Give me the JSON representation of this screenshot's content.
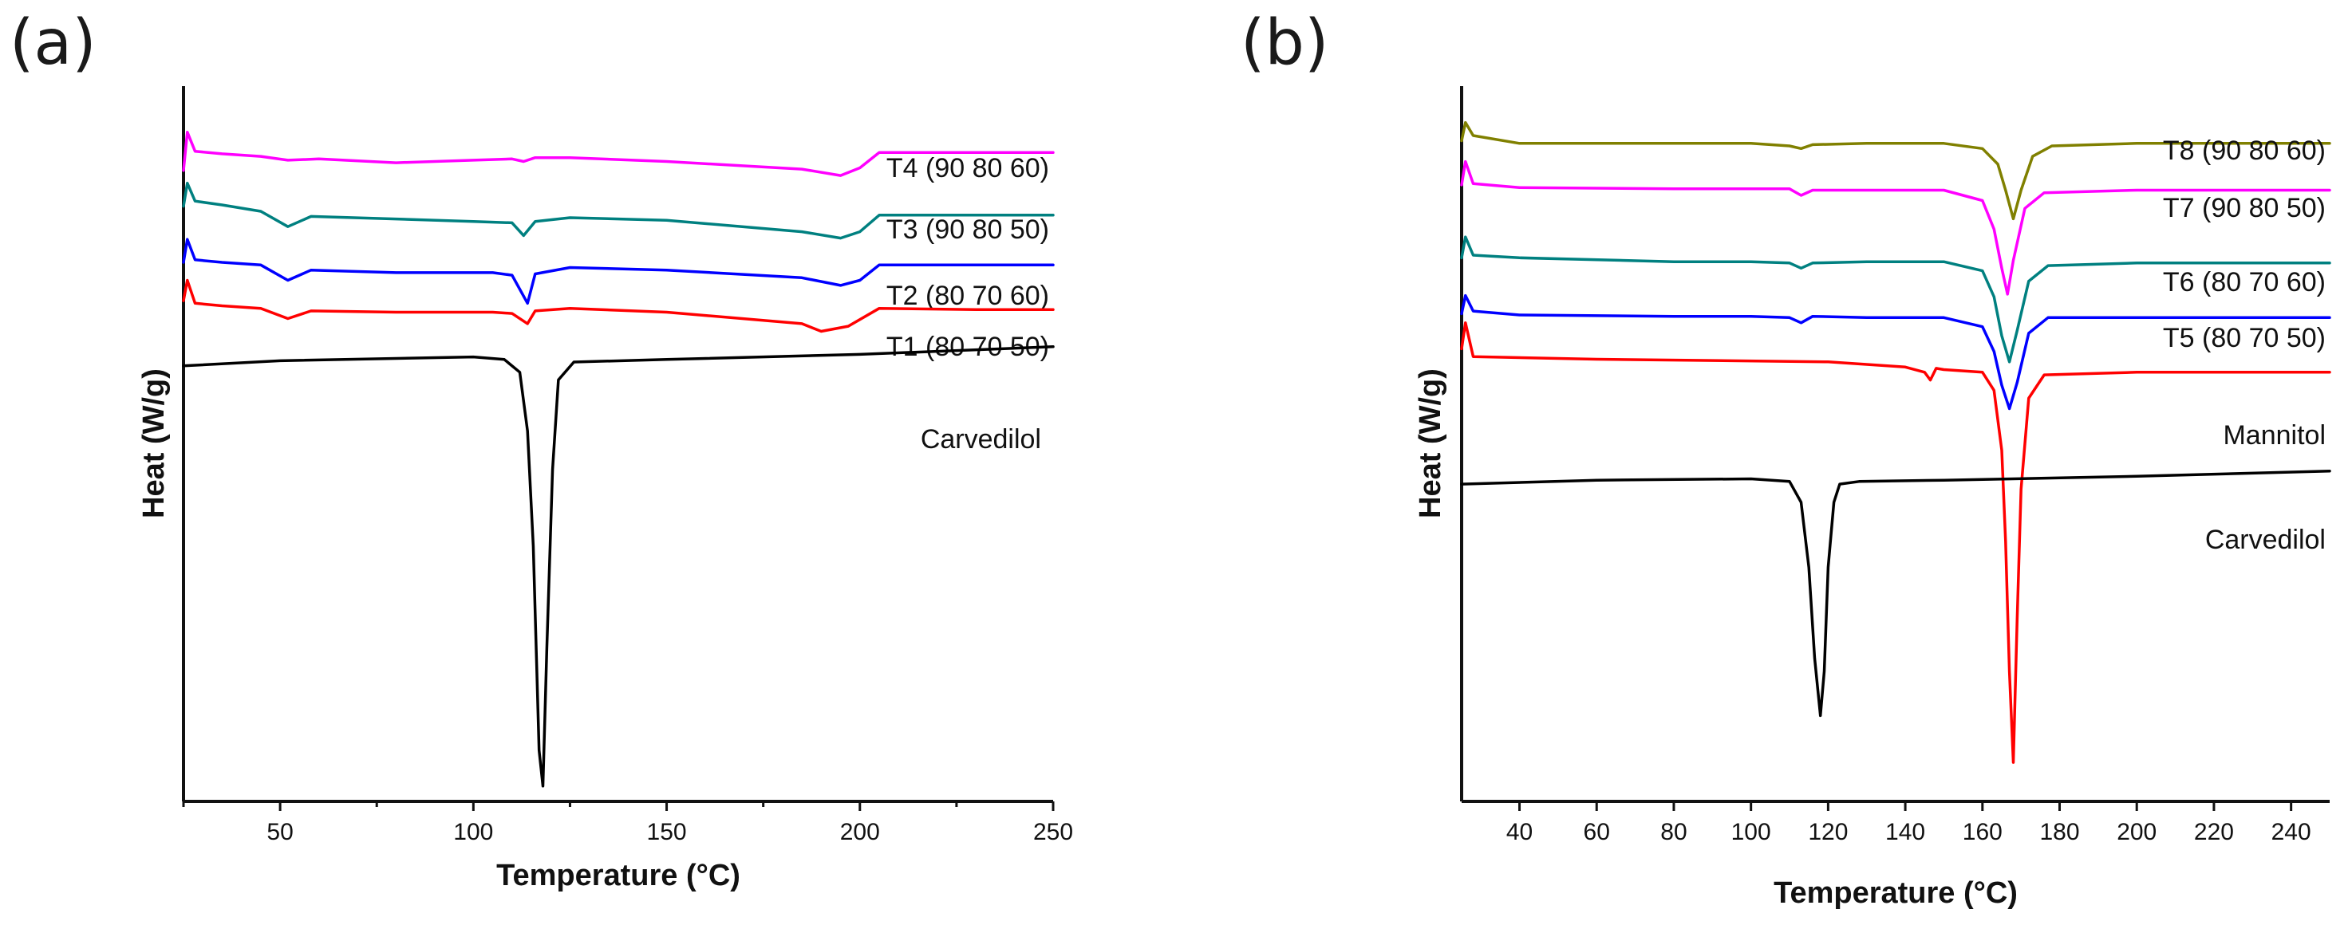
{
  "chart_data": [
    {
      "type": "line",
      "panel_label": "(a)",
      "title": "",
      "xlabel": "Temperature (°C)",
      "ylabel": "Heat (W/g)",
      "xlim": [
        25,
        250
      ],
      "xticks": [
        50,
        100,
        150,
        200,
        250
      ],
      "yticks_shown": false,
      "series": [
        {
          "name": "T4 (90 80 60)",
          "color": "#ff00ff",
          "x": [
            25,
            26,
            28,
            35,
            45,
            52,
            60,
            80,
            100,
            110,
            113,
            116,
            125,
            150,
            185,
            195,
            200,
            205,
            230,
            250
          ],
          "y": [
            2.7,
            4.2,
            3.45,
            3.35,
            3.25,
            3.1,
            3.15,
            3.0,
            3.1,
            3.15,
            3.05,
            3.2,
            3.2,
            3.05,
            2.75,
            2.5,
            2.8,
            3.4,
            3.4,
            3.4
          ]
        },
        {
          "name": "T3 (90 80 50)",
          "color": "#008080",
          "x": [
            25,
            26,
            28,
            35,
            45,
            52,
            58,
            80,
            100,
            110,
            113,
            116,
            125,
            150,
            185,
            195,
            200,
            205,
            230,
            250
          ],
          "y": [
            1.3,
            2.2,
            1.5,
            1.35,
            1.1,
            0.5,
            0.9,
            0.8,
            0.7,
            0.65,
            0.15,
            0.7,
            0.85,
            0.75,
            0.3,
            0.05,
            0.3,
            0.95,
            0.95,
            0.95
          ]
        },
        {
          "name": "T2 (80 70 60)",
          "color": "#0000ff",
          "x": [
            25,
            26,
            28,
            35,
            45,
            52,
            58,
            80,
            105,
            110,
            114,
            116,
            125,
            150,
            185,
            195,
            200,
            205,
            230,
            250
          ],
          "y": [
            -0.9,
            0.0,
            -0.8,
            -0.9,
            -1.0,
            -1.6,
            -1.2,
            -1.3,
            -1.3,
            -1.4,
            -2.5,
            -1.35,
            -1.1,
            -1.2,
            -1.5,
            -1.8,
            -1.6,
            -1.0,
            -1.0,
            -1.0
          ]
        },
        {
          "name": "T1 (80 70 50)",
          "color": "#ff0000",
          "x": [
            25,
            26,
            28,
            35,
            45,
            52,
            58,
            80,
            105,
            110,
            114,
            116,
            125,
            150,
            185,
            190,
            197,
            205,
            230,
            250
          ],
          "y": [
            -2.4,
            -1.6,
            -2.5,
            -2.6,
            -2.7,
            -3.1,
            -2.8,
            -2.85,
            -2.85,
            -2.9,
            -3.3,
            -2.8,
            -2.7,
            -2.85,
            -3.3,
            -3.6,
            -3.4,
            -2.7,
            -2.75,
            -2.75
          ]
        },
        {
          "name": "Carvedilol",
          "color": "#000000",
          "x": [
            25,
            50,
            100,
            108,
            112,
            114,
            115.5,
            117,
            118,
            119,
            120.5,
            122,
            126,
            150,
            200,
            250
          ],
          "y": [
            -4.95,
            -4.75,
            -4.6,
            -4.7,
            -5.2,
            -7.5,
            -12,
            -20,
            -21.4,
            -16,
            -9,
            -5.5,
            -4.8,
            -4.7,
            -4.5,
            -4.2
          ]
        }
      ]
    },
    {
      "type": "line",
      "panel_label": "(b)",
      "title": "",
      "xlabel": "Temperature (°C)",
      "ylabel": "Heat (W/g)",
      "xlim": [
        25,
        250
      ],
      "xticks": [
        40,
        60,
        80,
        100,
        120,
        140,
        160,
        180,
        200,
        220,
        240
      ],
      "yticks_shown": false,
      "series": [
        {
          "name": "T8 (90 80 60)",
          "color": "#808000",
          "x": [
            25,
            26,
            28,
            40,
            80,
            100,
            110,
            113,
            116,
            130,
            150,
            160,
            164,
            166,
            168,
            170,
            173,
            178,
            200,
            250
          ],
          "y": [
            5.4,
            6.1,
            5.6,
            5.3,
            5.3,
            5.3,
            5.2,
            5.1,
            5.25,
            5.3,
            5.3,
            5.1,
            4.5,
            3.5,
            2.4,
            3.5,
            4.8,
            5.2,
            5.3,
            5.3
          ]
        },
        {
          "name": "T7 (90 80 50)",
          "color": "#ff00ff",
          "x": [
            25,
            26,
            28,
            40,
            80,
            100,
            110,
            113,
            116,
            130,
            150,
            160,
            163,
            165,
            166.5,
            168,
            171,
            176,
            200,
            250
          ],
          "y": [
            3.7,
            4.6,
            3.75,
            3.6,
            3.55,
            3.55,
            3.55,
            3.3,
            3.5,
            3.5,
            3.5,
            3.1,
            2.0,
            0.5,
            -0.5,
            0.8,
            2.8,
            3.4,
            3.5,
            3.5
          ]
        },
        {
          "name": "T6 (80 70 60)",
          "color": "#008080",
          "x": [
            25,
            26,
            28,
            40,
            80,
            100,
            110,
            113,
            116,
            130,
            150,
            160,
            163,
            165,
            167,
            169,
            172,
            177,
            200,
            250
          ],
          "y": [
            0.9,
            1.7,
            1.0,
            0.9,
            0.75,
            0.75,
            0.7,
            0.5,
            0.7,
            0.75,
            0.75,
            0.4,
            -0.6,
            -2.1,
            -3.1,
            -1.9,
            0.0,
            0.6,
            0.7,
            0.7
          ]
        },
        {
          "name": "T5 (80 70 50)",
          "color": "#0000ff",
          "x": [
            25,
            26,
            28,
            40,
            80,
            100,
            110,
            113,
            116,
            130,
            150,
            160,
            163,
            165,
            167,
            169,
            172,
            177,
            200,
            250
          ],
          "y": [
            -1.25,
            -0.55,
            -1.15,
            -1.3,
            -1.35,
            -1.35,
            -1.4,
            -1.6,
            -1.35,
            -1.4,
            -1.4,
            -1.75,
            -2.7,
            -4.0,
            -4.9,
            -3.9,
            -2.0,
            -1.4,
            -1.4,
            -1.4
          ]
        },
        {
          "name": "Mannitol",
          "color": "#ff0000",
          "x": [
            25,
            26,
            28,
            60,
            120,
            140,
            145,
            146.5,
            148,
            150,
            160,
            163,
            165,
            166,
            167,
            168,
            169,
            170,
            172,
            176,
            200,
            250
          ],
          "y": [
            -2.6,
            -1.6,
            -2.9,
            -3.0,
            -3.1,
            -3.3,
            -3.5,
            -3.8,
            -3.35,
            -3.4,
            -3.5,
            -4.2,
            -6.5,
            -10,
            -15,
            -18.5,
            -13,
            -8,
            -4.5,
            -3.6,
            -3.5,
            -3.5
          ]
        },
        {
          "name": "Carvedilol",
          "color": "#000000",
          "x": [
            25,
            60,
            100,
            110,
            113,
            115,
            116.5,
            118,
            119,
            120,
            121.5,
            123,
            128,
            150,
            200,
            250
          ],
          "y": [
            -7.8,
            -7.65,
            -7.6,
            -7.7,
            -8.5,
            -11,
            -14.5,
            -16.7,
            -15,
            -11,
            -8.5,
            -7.8,
            -7.7,
            -7.65,
            -7.5,
            -7.3
          ]
        }
      ]
    }
  ]
}
